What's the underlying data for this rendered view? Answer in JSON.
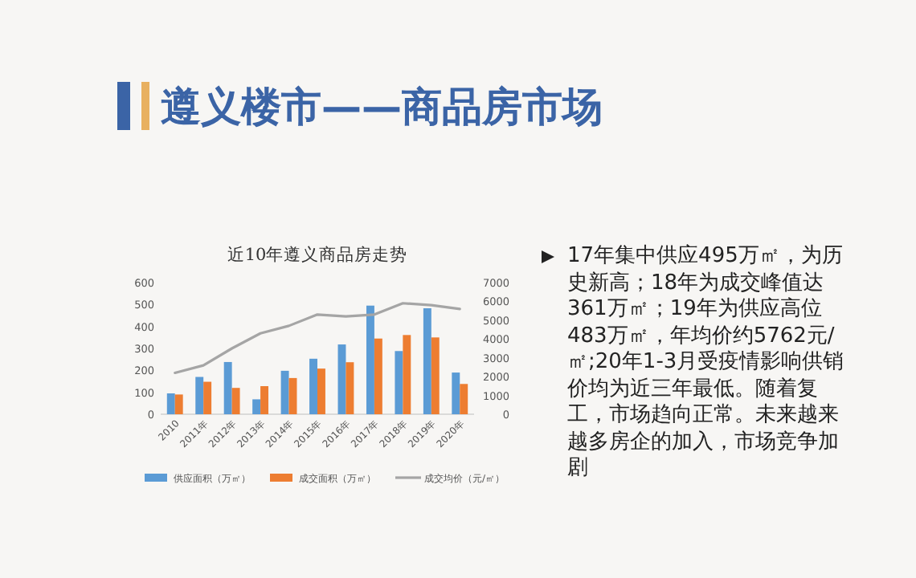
{
  "chart_data": {
    "type": "bar",
    "title": "遵义楼市——商品房市场",
    "subtitle": "近10年遵义商品房走势",
    "categories": [
      "2010",
      "2011年",
      "2012年",
      "2013年",
      "2014年",
      "2015年",
      "2016年",
      "2017年",
      "2018年",
      "2019年",
      "2020年"
    ],
    "series": [
      {
        "name": "供应面积（万㎡）",
        "color": "#5b9bd5",
        "values": [
          95,
          170,
          238,
          68,
          198,
          253,
          318,
          495,
          288,
          483,
          190
        ]
      },
      {
        "name": "成交面积（万㎡）",
        "color": "#ed7d31",
        "values": [
          90,
          148,
          120,
          128,
          165,
          208,
          237,
          345,
          361,
          350,
          138
        ]
      },
      {
        "name": "成交均价（元/㎡）",
        "color": "#a5a5a5",
        "type": "line",
        "axis": "y2",
        "values": [
          2200,
          2600,
          3500,
          4300,
          4700,
          5300,
          5200,
          5300,
          5900,
          5800,
          5600
        ]
      }
    ],
    "ylim": [
      0,
      600
    ],
    "yticks": [
      0,
      100,
      200,
      300,
      400,
      500,
      600
    ],
    "y2lim": [
      0,
      7000
    ],
    "y2ticks": [
      0,
      1000,
      2000,
      3000,
      4000,
      5000,
      6000,
      7000
    ],
    "grid": false,
    "legend": "bottom",
    "marker": "none",
    "annotations": [
      "17年集中供应495万㎡，为历史新高；18年为成交峰值达361万㎡；19年为供应高位483万㎡，年均价约5762元/㎡;20年1-3月受疫情影响供销价均为近三年最低。随着复工，市场趋向正常。未来越来越多房企的加入，市场竞争加剧"
    ]
  }
}
